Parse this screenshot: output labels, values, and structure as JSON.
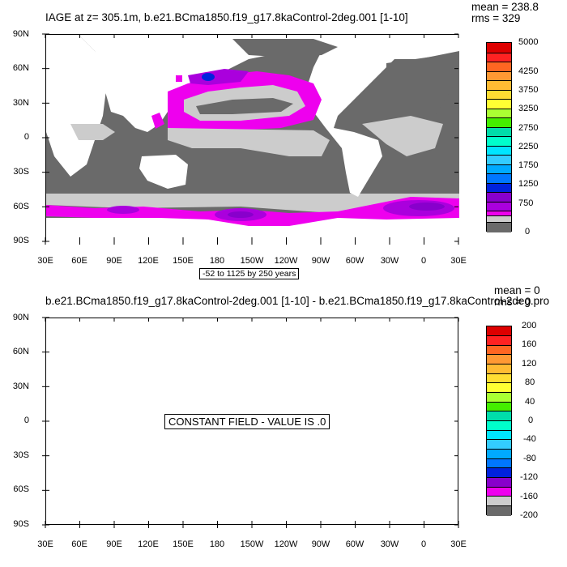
{
  "colors": {
    "palette": [
      "#6a6a6a",
      "#cccccc",
      "#ee00ee",
      "#aa00dd",
      "#8800cc",
      "#0022dd",
      "#0077ff",
      "#00aaff",
      "#33ccff",
      "#00e5ff",
      "#00ffcc",
      "#00ddaa",
      "#44ee00",
      "#aaff33",
      "#ffff33",
      "#ffdd33",
      "#ffbb33",
      "#ff9933",
      "#ff6622",
      "#ff2222",
      "#dd0000"
    ],
    "land": "#ffffff",
    "low_age": "#6a6a6a",
    "mid_age": "#cccccc",
    "old_age": "#ee00ee",
    "very_old": "#8800cc",
    "oldest": "#0022dd"
  },
  "panel1": {
    "title": "IAGE at z= 305.1m, b.e21.BCma1850.f19_g17.8kaControl-2deg.001 [1-10]",
    "mean": "mean = 238.8",
    "rms": "rms = 329",
    "lat_labels": [
      "90N",
      "60N",
      "30N",
      "0",
      "30S",
      "60S",
      "90S"
    ],
    "lon_labels": [
      "30E",
      "60E",
      "90E",
      "120E",
      "150E",
      "180",
      "150W",
      "120W",
      "90W",
      "60W",
      "30W",
      "0",
      "30E"
    ],
    "note": "-52 to 1125 by 250 years",
    "colorbar_labels": [
      "5000",
      "4250",
      "3750",
      "3250",
      "2750",
      "2250",
      "1750",
      "1250",
      "750",
      "0"
    ]
  },
  "panel2": {
    "title": "b.e21.BCma1850.f19_g17.8kaControl-2deg.001 [1-10] - b.e21.BCma1850.f19_g17.8kaControl-2deg.pro",
    "mean": "mean = 0",
    "rms": "rms = 0",
    "lat_labels": [
      "90N",
      "60N",
      "30N",
      "0",
      "30S",
      "60S",
      "90S"
    ],
    "lon_labels": [
      "30E",
      "60E",
      "90E",
      "120E",
      "150E",
      "180",
      "150W",
      "120W",
      "90W",
      "60W",
      "30W",
      "0",
      "30E"
    ],
    "constant_label": "CONSTANT FIELD - VALUE IS .0",
    "colorbar_labels": [
      "200",
      "160",
      "120",
      "80",
      "40",
      "0",
      "-40",
      "-80",
      "-120",
      "-160",
      "-200"
    ]
  },
  "chart_data": [
    {
      "type": "heatmap",
      "title": "IAGE at z= 305.1m, b.e21.BCma1850.f19_g17.8kaControl-2deg.001 [1-10]",
      "xlabel": "",
      "ylabel": "",
      "x_ticks": [
        "30E",
        "60E",
        "90E",
        "120E",
        "150E",
        "180",
        "150W",
        "120W",
        "90W",
        "60W",
        "30W",
        "0",
        "30E"
      ],
      "y_ticks": [
        "90N",
        "60N",
        "30N",
        "0",
        "30S",
        "60S",
        "90S"
      ],
      "xlim": [
        30,
        390
      ],
      "ylim": [
        -90,
        90
      ],
      "contour_range": "-52 to 1125 by 250 years",
      "levels": [
        0,
        750,
        1250,
        1750,
        2250,
        2750,
        3250,
        3750,
        4250,
        5000
      ],
      "stats": {
        "mean": 238.8,
        "rms": 329
      }
    },
    {
      "type": "heatmap",
      "title": "b.e21.BCma1850.f19_g17.8kaControl-2deg.001 [1-10] - b.e21.BCma1850.f19_g17.8kaControl-2deg.pro",
      "xlabel": "",
      "ylabel": "",
      "x_ticks": [
        "30E",
        "60E",
        "90E",
        "120E",
        "150E",
        "180",
        "150W",
        "120W",
        "90W",
        "60W",
        "30W",
        "0",
        "30E"
      ],
      "y_ticks": [
        "90N",
        "60N",
        "30N",
        "0",
        "30S",
        "60S",
        "90S"
      ],
      "xlim": [
        30,
        390
      ],
      "ylim": [
        -90,
        90
      ],
      "constant_value": 0,
      "levels": [
        -200,
        -160,
        -120,
        -80,
        -40,
        0,
        40,
        80,
        120,
        160,
        200
      ],
      "stats": {
        "mean": 0,
        "rms": 0
      }
    }
  ]
}
